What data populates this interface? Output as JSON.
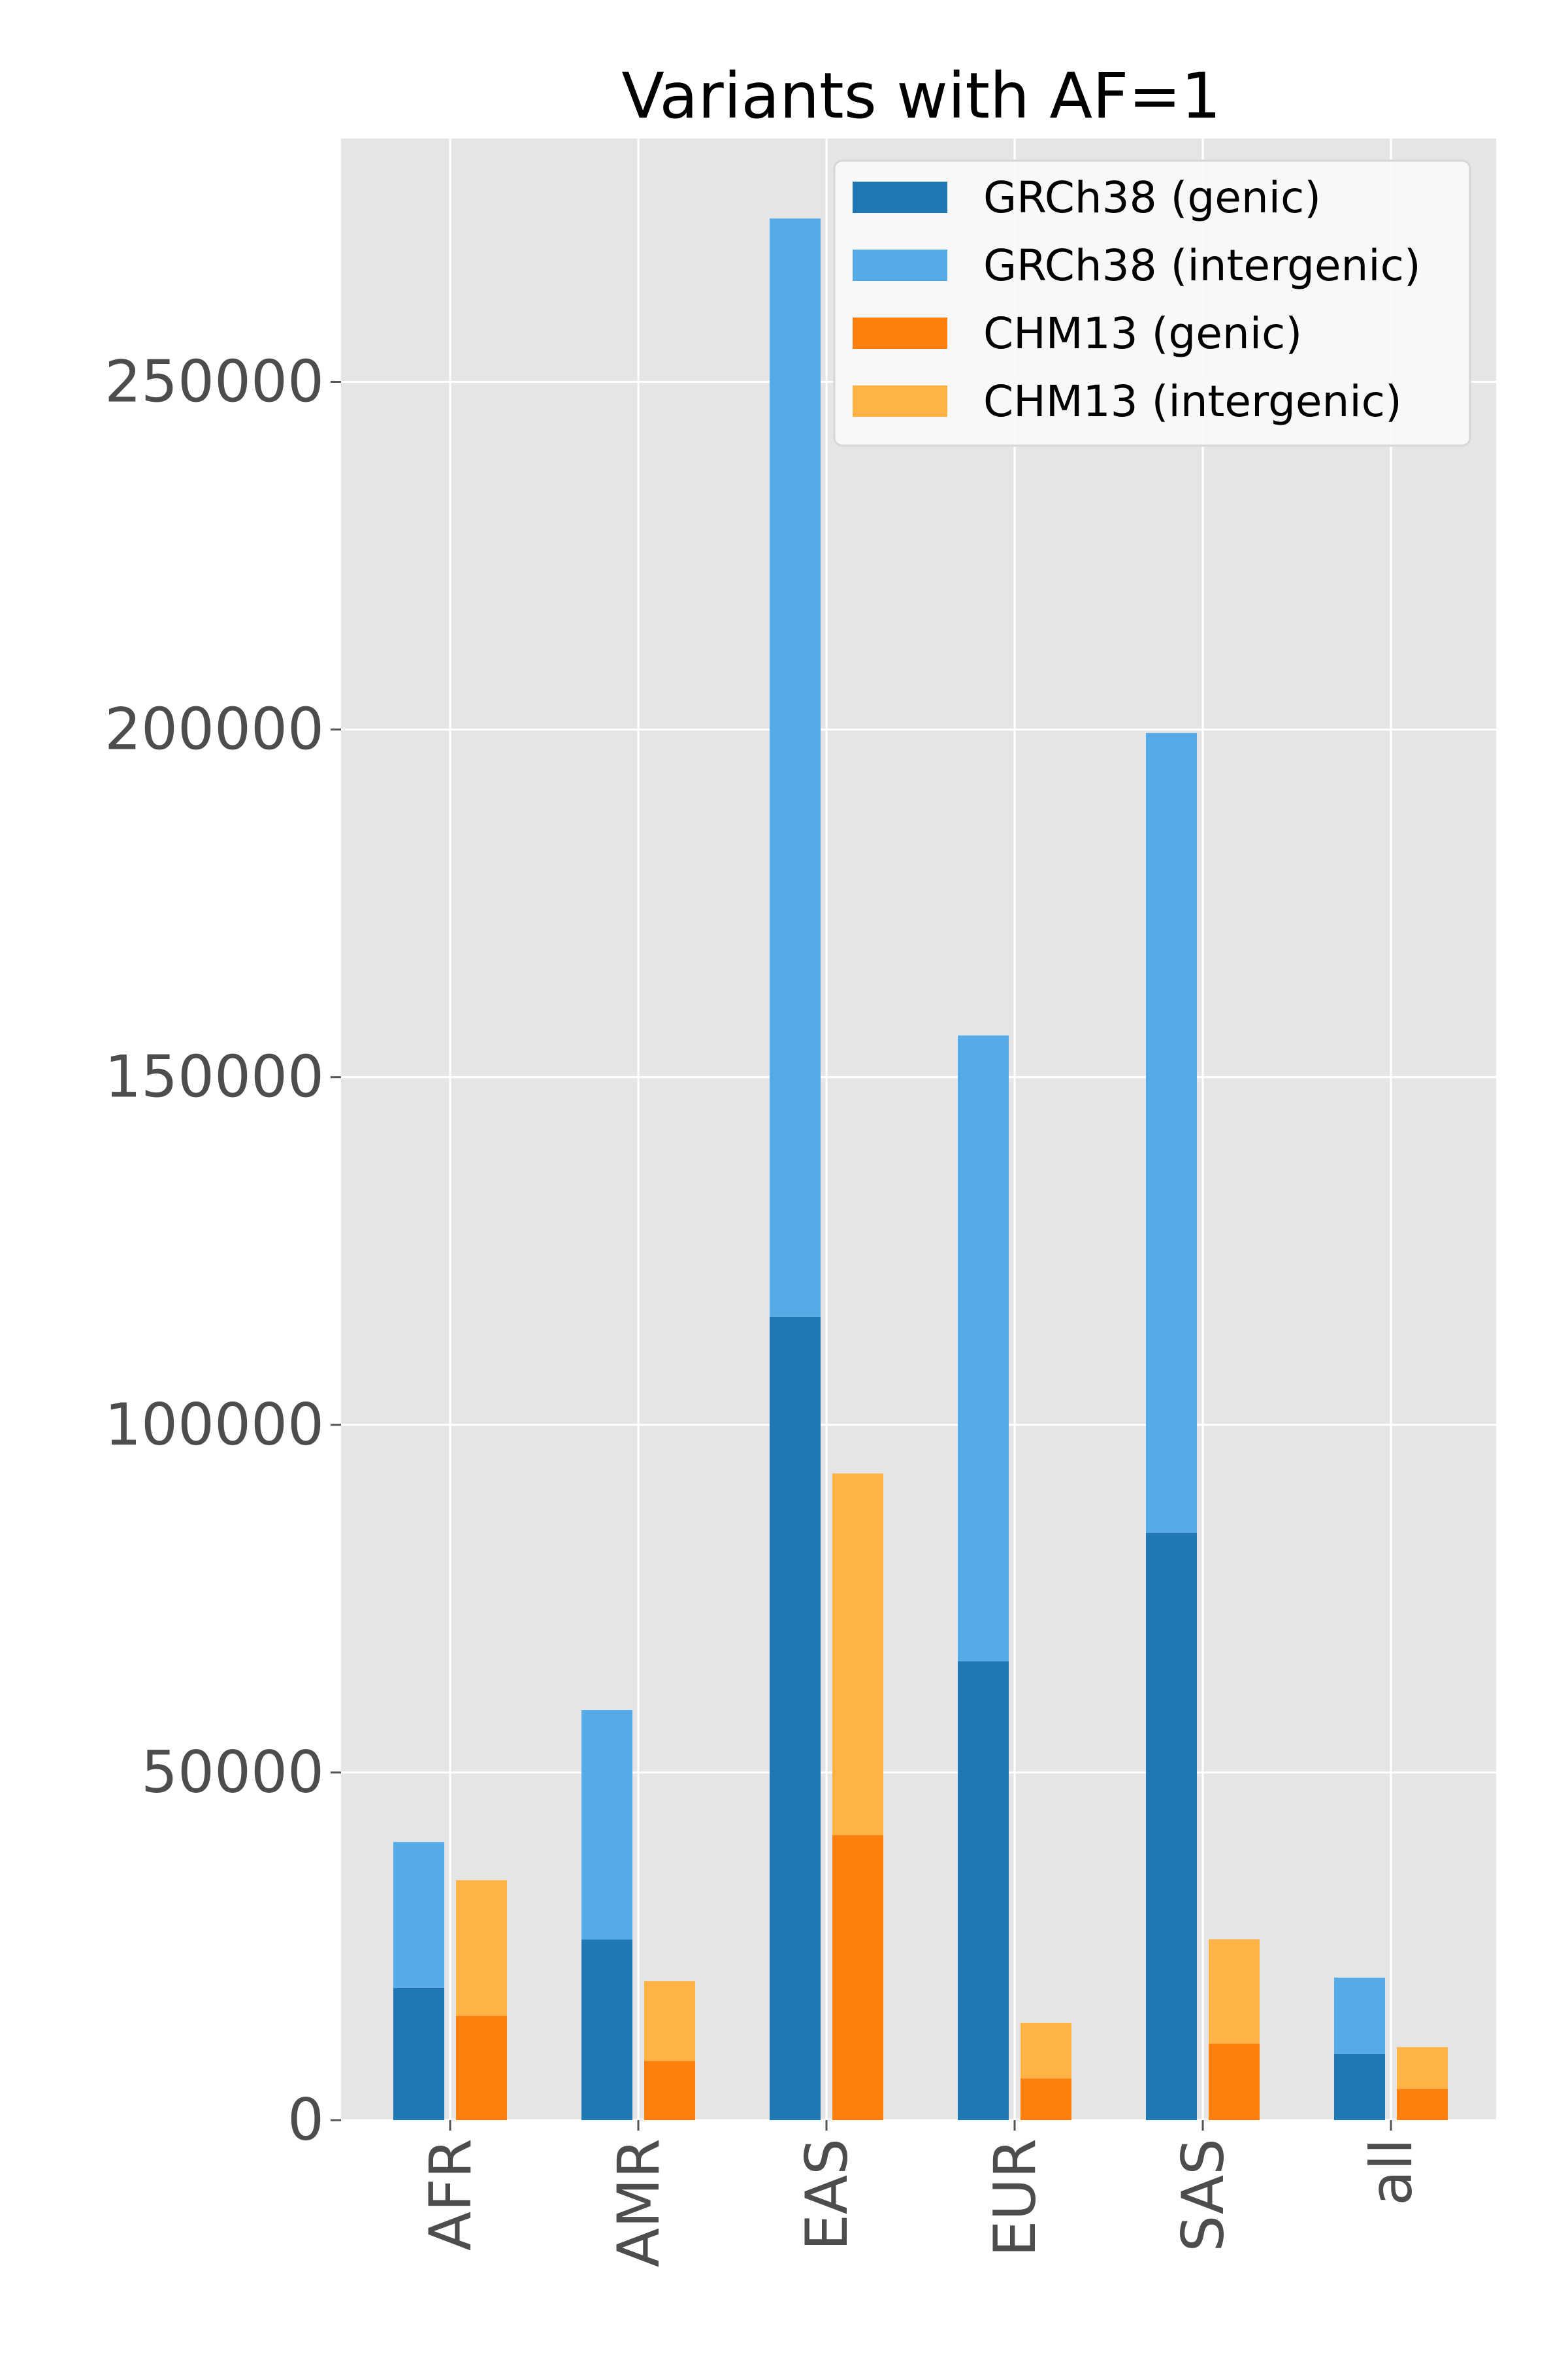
{
  "chart_data": {
    "type": "bar",
    "stacked": true,
    "title": "Variants with AF=1",
    "xlabel": "",
    "ylabel": "",
    "categories": [
      "AFR",
      "AMR",
      "EAS",
      "EUR",
      "SAS",
      "all"
    ],
    "ylim": [
      0,
      285000
    ],
    "yticks": [
      0,
      50000,
      100000,
      150000,
      200000,
      250000
    ],
    "ytick_labels": [
      "0",
      "50000",
      "100000",
      "150000",
      "200000",
      "250000"
    ],
    "grid": true,
    "background": "#e5e5e5",
    "legend_position": "top-right",
    "groups": [
      {
        "name": "GRCh38",
        "series": [
          {
            "name": "GRCh38 (genic)",
            "color": "#1f77b4",
            "values": [
              19000,
              26000,
              115500,
              66000,
              84500,
              9500
            ]
          },
          {
            "name": "GRCh38 (intergenic)",
            "color": "#56aae6",
            "values": [
              21000,
              33000,
              158000,
              90000,
              115000,
              11000
            ]
          }
        ]
      },
      {
        "name": "CHM13",
        "series": [
          {
            "name": "CHM13 (genic)",
            "color": "#ff7f0e",
            "values": [
              15000,
              8500,
              41000,
              6000,
              11000,
              4500
            ]
          },
          {
            "name": "CHM13 (intergenic)",
            "color": "#ffb245",
            "values": [
              19500,
              11500,
              52000,
              8000,
              15000,
              6000
            ]
          }
        ]
      }
    ]
  }
}
